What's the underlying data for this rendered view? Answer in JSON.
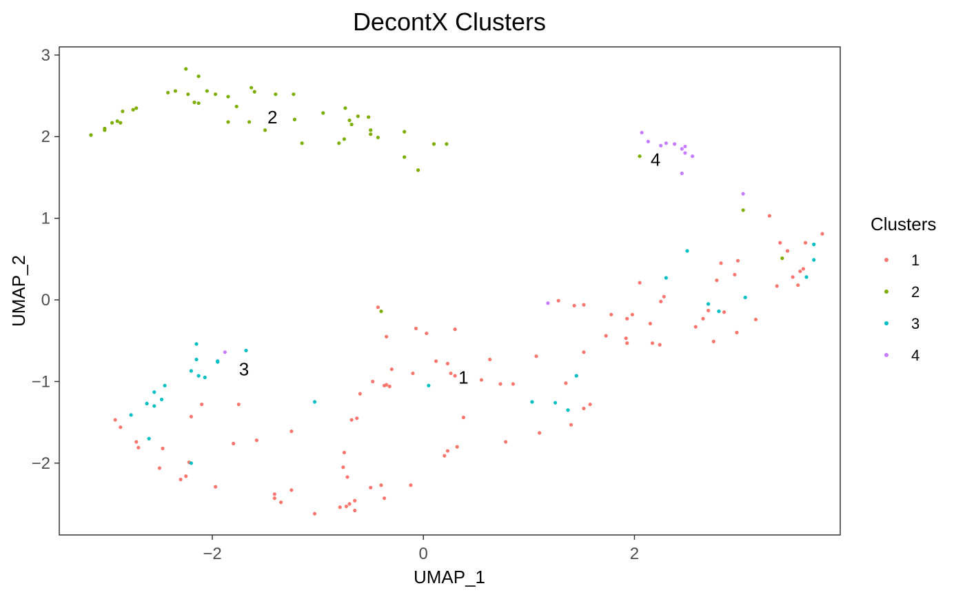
{
  "chart_data": {
    "type": "scatter",
    "title": "DecontX Clusters",
    "xlabel": "UMAP_1",
    "ylabel": "UMAP_2",
    "xlim": [
      -3.45,
      3.95
    ],
    "ylim": [
      -2.88,
      3.1
    ],
    "xticks": [
      -2,
      0,
      2
    ],
    "yticks": [
      -2,
      -1,
      0,
      1,
      2,
      3
    ],
    "grid": false,
    "legend": {
      "title": "Clusters",
      "placement": "right"
    },
    "series": [
      {
        "name": "1",
        "color": "#F8766D",
        "points": [
          [
            -0.43,
            -0.09
          ],
          [
            -0.35,
            -0.45
          ],
          [
            -0.07,
            -0.35
          ],
          [
            0.03,
            -0.41
          ],
          [
            0.3,
            -0.36
          ],
          [
            -0.1,
            -0.9
          ],
          [
            -0.3,
            -0.85
          ],
          [
            -0.37,
            -1.05
          ],
          [
            -0.32,
            -1.06
          ],
          [
            -0.35,
            -1.04
          ],
          [
            -0.48,
            -1.0
          ],
          [
            -0.6,
            -1.15
          ],
          [
            0.12,
            -0.75
          ],
          [
            0.23,
            -0.78
          ],
          [
            0.26,
            -0.9
          ],
          [
            0.3,
            -0.93
          ],
          [
            0.55,
            -0.98
          ],
          [
            0.63,
            -0.73
          ],
          [
            0.73,
            -1.03
          ],
          [
            0.85,
            -1.03
          ],
          [
            0.38,
            -1.44
          ],
          [
            0.32,
            -1.8
          ],
          [
            0.23,
            -1.85
          ],
          [
            0.2,
            -1.91
          ],
          [
            0.78,
            -1.74
          ],
          [
            1.07,
            -0.69
          ],
          [
            1.1,
            -1.63
          ],
          [
            -0.63,
            -1.45
          ],
          [
            -0.68,
            -1.47
          ],
          [
            -0.75,
            -1.87
          ],
          [
            -0.76,
            -2.05
          ],
          [
            -0.72,
            -2.17
          ],
          [
            -0.7,
            -2.5
          ],
          [
            -0.73,
            -2.53
          ],
          [
            -0.79,
            -2.54
          ],
          [
            -0.65,
            -2.58
          ],
          [
            -0.65,
            -2.46
          ],
          [
            -0.5,
            -2.3
          ],
          [
            -0.4,
            -2.27
          ],
          [
            -0.37,
            -2.43
          ],
          [
            -0.12,
            -2.27
          ],
          [
            -1.03,
            -2.62
          ],
          [
            -1.25,
            -2.33
          ],
          [
            -1.41,
            -2.38
          ],
          [
            -1.41,
            -2.43
          ],
          [
            -1.35,
            -2.48
          ],
          [
            -1.25,
            -1.61
          ],
          [
            -1.58,
            -1.72
          ],
          [
            -1.75,
            -1.28
          ],
          [
            -1.8,
            -1.76
          ],
          [
            -1.97,
            -2.29
          ],
          [
            -2.1,
            -1.28
          ],
          [
            -2.2,
            -1.43
          ],
          [
            -2.22,
            -1.99
          ],
          [
            -2.25,
            -2.16
          ],
          [
            -2.3,
            -2.2
          ],
          [
            -2.47,
            -1.82
          ],
          [
            -2.5,
            -2.06
          ],
          [
            -2.7,
            -1.81
          ],
          [
            -2.72,
            -1.74
          ],
          [
            -2.87,
            -1.56
          ],
          [
            -2.92,
            -1.47
          ],
          [
            1.28,
            -0.01
          ],
          [
            1.43,
            -0.07
          ],
          [
            1.52,
            -0.06
          ],
          [
            1.35,
            -1.02
          ],
          [
            1.52,
            -0.64
          ],
          [
            1.52,
            -1.33
          ],
          [
            1.58,
            -1.28
          ],
          [
            1.4,
            -1.53
          ],
          [
            1.73,
            -0.44
          ],
          [
            1.78,
            -0.18
          ],
          [
            1.92,
            -0.47
          ],
          [
            1.93,
            -0.23
          ],
          [
            1.98,
            -0.18
          ],
          [
            1.93,
            -0.53
          ],
          [
            2.05,
            0.21
          ],
          [
            2.15,
            -0.29
          ],
          [
            2.17,
            -0.53
          ],
          [
            2.24,
            -0.55
          ],
          [
            2.25,
            -0.02
          ],
          [
            2.28,
            0.04
          ],
          [
            2.58,
            -0.33
          ],
          [
            2.65,
            -0.23
          ],
          [
            2.7,
            -0.13
          ],
          [
            2.75,
            -0.51
          ],
          [
            2.78,
            0.24
          ],
          [
            2.82,
            0.45
          ],
          [
            2.85,
            -0.15
          ],
          [
            2.95,
            0.31
          ],
          [
            2.97,
            -0.4
          ],
          [
            2.98,
            0.48
          ],
          [
            3.15,
            -0.24
          ],
          [
            3.28,
            1.03
          ],
          [
            3.35,
            0.17
          ],
          [
            3.38,
            0.7
          ],
          [
            3.45,
            0.6
          ],
          [
            3.5,
            0.28
          ],
          [
            3.55,
            0.18
          ],
          [
            3.57,
            0.35
          ],
          [
            3.6,
            0.38
          ],
          [
            3.62,
            0.7
          ],
          [
            3.78,
            0.81
          ]
        ]
      },
      {
        "name": "2",
        "color": "#7CAE00",
        "points": [
          [
            -3.15,
            2.02
          ],
          [
            -3.02,
            2.08
          ],
          [
            -3.02,
            2.1
          ],
          [
            -2.95,
            2.17
          ],
          [
            -2.9,
            2.19
          ],
          [
            -2.87,
            2.17
          ],
          [
            -2.85,
            2.31
          ],
          [
            -2.75,
            2.33
          ],
          [
            -2.72,
            2.35
          ],
          [
            -2.42,
            2.54
          ],
          [
            -2.35,
            2.56
          ],
          [
            -2.25,
            2.83
          ],
          [
            -2.23,
            2.52
          ],
          [
            -2.17,
            2.42
          ],
          [
            -2.13,
            2.41
          ],
          [
            -2.13,
            2.74
          ],
          [
            -2.05,
            2.56
          ],
          [
            -1.97,
            2.52
          ],
          [
            -1.85,
            2.49
          ],
          [
            -1.85,
            2.18
          ],
          [
            -1.77,
            2.37
          ],
          [
            -1.63,
            2.6
          ],
          [
            -1.65,
            2.18
          ],
          [
            -1.6,
            2.55
          ],
          [
            -1.5,
            2.08
          ],
          [
            -1.4,
            2.52
          ],
          [
            -1.23,
            2.52
          ],
          [
            -1.22,
            2.21
          ],
          [
            -1.15,
            1.92
          ],
          [
            -0.95,
            2.29
          ],
          [
            -0.8,
            1.92
          ],
          [
            -0.74,
            2.35
          ],
          [
            -0.75,
            1.97
          ],
          [
            -0.7,
            2.2
          ],
          [
            -0.68,
            2.15
          ],
          [
            -0.62,
            2.25
          ],
          [
            -0.52,
            2.24
          ],
          [
            -0.5,
            2.08
          ],
          [
            -0.5,
            2.03
          ],
          [
            -0.43,
            1.99
          ],
          [
            -0.18,
            2.06
          ],
          [
            -0.18,
            1.75
          ],
          [
            -0.05,
            1.59
          ],
          [
            0.1,
            1.91
          ],
          [
            0.22,
            1.91
          ],
          [
            2.05,
            1.76
          ],
          [
            3.03,
            1.1
          ],
          [
            3.4,
            0.51
          ],
          [
            -0.4,
            -0.14
          ]
        ]
      },
      {
        "name": "3",
        "color": "#00BFC4",
        "points": [
          [
            -2.15,
            -0.54
          ],
          [
            -2.2,
            -0.87
          ],
          [
            -2.15,
            -0.73
          ],
          [
            -2.13,
            -0.93
          ],
          [
            -2.07,
            -0.95
          ],
          [
            -1.95,
            -0.76
          ],
          [
            -1.95,
            -0.75
          ],
          [
            -1.68,
            -0.62
          ],
          [
            -2.45,
            -1.05
          ],
          [
            -2.48,
            -1.22
          ],
          [
            -2.55,
            -1.13
          ],
          [
            -2.55,
            -1.3
          ],
          [
            -2.62,
            -1.27
          ],
          [
            -2.77,
            -1.41
          ],
          [
            -2.6,
            -1.7
          ],
          [
            -2.2,
            -2.0
          ],
          [
            -1.03,
            -1.25
          ],
          [
            0.05,
            -1.05
          ],
          [
            1.03,
            -1.25
          ],
          [
            1.25,
            -1.26
          ],
          [
            1.37,
            -1.35
          ],
          [
            1.45,
            -0.93
          ],
          [
            2.3,
            0.27
          ],
          [
            2.5,
            0.6
          ],
          [
            2.7,
            -0.05
          ],
          [
            2.8,
            -0.14
          ],
          [
            3.05,
            0.03
          ],
          [
            3.7,
            0.68
          ],
          [
            3.7,
            0.49
          ],
          [
            3.63,
            0.28
          ]
        ]
      },
      {
        "name": "4",
        "color": "#C77CFF",
        "points": [
          [
            2.07,
            2.05
          ],
          [
            2.13,
            1.94
          ],
          [
            2.25,
            1.89
          ],
          [
            2.3,
            1.92
          ],
          [
            2.38,
            1.91
          ],
          [
            2.45,
            1.85
          ],
          [
            2.48,
            1.8
          ],
          [
            2.48,
            1.88
          ],
          [
            2.55,
            1.76
          ],
          [
            2.45,
            1.55
          ],
          [
            3.03,
            1.3
          ],
          [
            1.18,
            -0.04
          ],
          [
            -1.88,
            -0.64
          ]
        ]
      }
    ],
    "annotations": [
      {
        "text": "2",
        "x": -1.43,
        "y": 2.24
      },
      {
        "text": "4",
        "x": 2.2,
        "y": 1.72
      },
      {
        "text": "3",
        "x": -1.7,
        "y": -0.85
      },
      {
        "text": "1",
        "x": 0.38,
        "y": -0.95
      }
    ]
  }
}
